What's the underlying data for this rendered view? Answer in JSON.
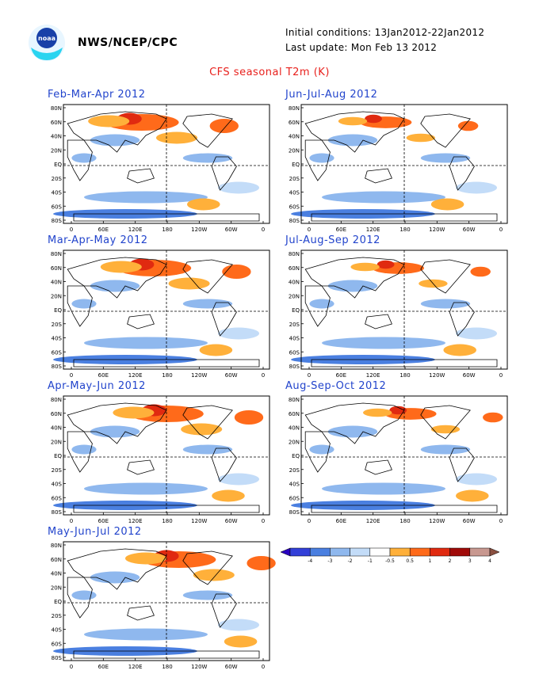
{
  "header": {
    "org": "NWS/NCEP/CPC",
    "initial_conditions": "Initial conditions: 13Jan2012-22Jan2012",
    "last_update": "Last update: Mon Feb 13 2012",
    "title": "CFS seasonal T2m (K)"
  },
  "axes": {
    "lat_ticks": [
      "80N",
      "60N",
      "40N",
      "20N",
      "EQ",
      "20S",
      "40S",
      "60S",
      "80S"
    ],
    "lon_ticks": [
      "0",
      "60E",
      "120E",
      "180",
      "120W",
      "60W",
      "0"
    ]
  },
  "panels": [
    {
      "title": "Feb-Mar-Apr 2012"
    },
    {
      "title": "Jun-Jul-Aug 2012"
    },
    {
      "title": "Mar-Apr-May 2012"
    },
    {
      "title": "Jul-Aug-Sep 2012"
    },
    {
      "title": "Apr-May-Jun 2012"
    },
    {
      "title": "Aug-Sep-Oct 2012"
    },
    {
      "title": "May-Jun-Jul 2012"
    }
  ],
  "legend": {
    "labels": [
      "-4",
      "-3",
      "-2",
      "-1",
      "-0.5",
      "0.5",
      "1",
      "2",
      "3",
      "4"
    ],
    "colors": [
      "#2a00c0",
      "#3340d8",
      "#4a7fe0",
      "#8fb8ee",
      "#c3dcf8",
      "#ffffff",
      "#ffb03a",
      "#ff6a1a",
      "#e02a10",
      "#a00a08",
      "#c89890",
      "#8a5040"
    ]
  },
  "colors": {
    "title_red": "#e8201c",
    "panel_title_blue": "#2244cc"
  }
}
